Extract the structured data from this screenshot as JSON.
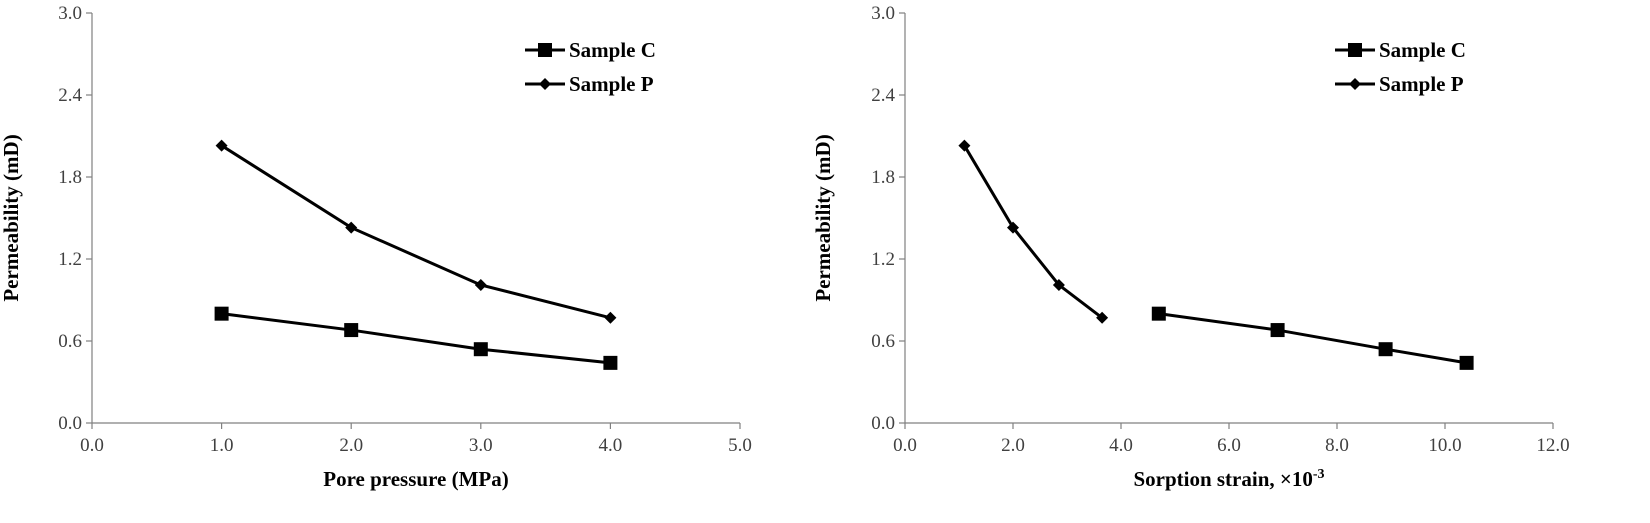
{
  "chart_data": [
    {
      "type": "line",
      "xlabel": "Pore pressure (MPa)",
      "ylabel": "Permeability (mD)",
      "xlim": [
        0,
        5
      ],
      "ylim": [
        0,
        3
      ],
      "x_ticks": [
        "0.0",
        "1.0",
        "2.0",
        "3.0",
        "4.0",
        "5.0"
      ],
      "y_ticks": [
        "0.0",
        "0.6",
        "1.2",
        "1.8",
        "2.4",
        "3.0"
      ],
      "grid": false,
      "legend_position": "top-right",
      "series": [
        {
          "name": "Sample C",
          "marker": "square",
          "x": [
            1.0,
            2.0,
            3.0,
            4.0
          ],
          "values": [
            0.8,
            0.68,
            0.54,
            0.44
          ]
        },
        {
          "name": "Sample P",
          "marker": "diamond",
          "x": [
            1.0,
            2.0,
            3.0,
            4.0
          ],
          "values": [
            2.03,
            1.43,
            1.01,
            0.77
          ]
        }
      ]
    },
    {
      "type": "line",
      "xlabel": "Sorption strain, ×10",
      "xlabel_superscript": "-3",
      "ylabel": "Permeability (mD)",
      "xlim": [
        0,
        12
      ],
      "ylim": [
        0,
        3
      ],
      "x_ticks": [
        "0.0",
        "2.0",
        "4.0",
        "6.0",
        "8.0",
        "10.0",
        "12.0"
      ],
      "y_ticks": [
        "0.0",
        "0.6",
        "1.2",
        "1.8",
        "2.4",
        "3.0"
      ],
      "grid": false,
      "legend_position": "top-right",
      "series": [
        {
          "name": "Sample C",
          "marker": "square",
          "x": [
            4.7,
            6.9,
            8.9,
            10.4
          ],
          "values": [
            0.8,
            0.68,
            0.54,
            0.44
          ]
        },
        {
          "name": "Sample P",
          "marker": "diamond",
          "x": [
            1.1,
            2.0,
            2.85,
            3.65
          ],
          "values": [
            2.03,
            1.43,
            1.01,
            0.77
          ]
        }
      ]
    }
  ]
}
